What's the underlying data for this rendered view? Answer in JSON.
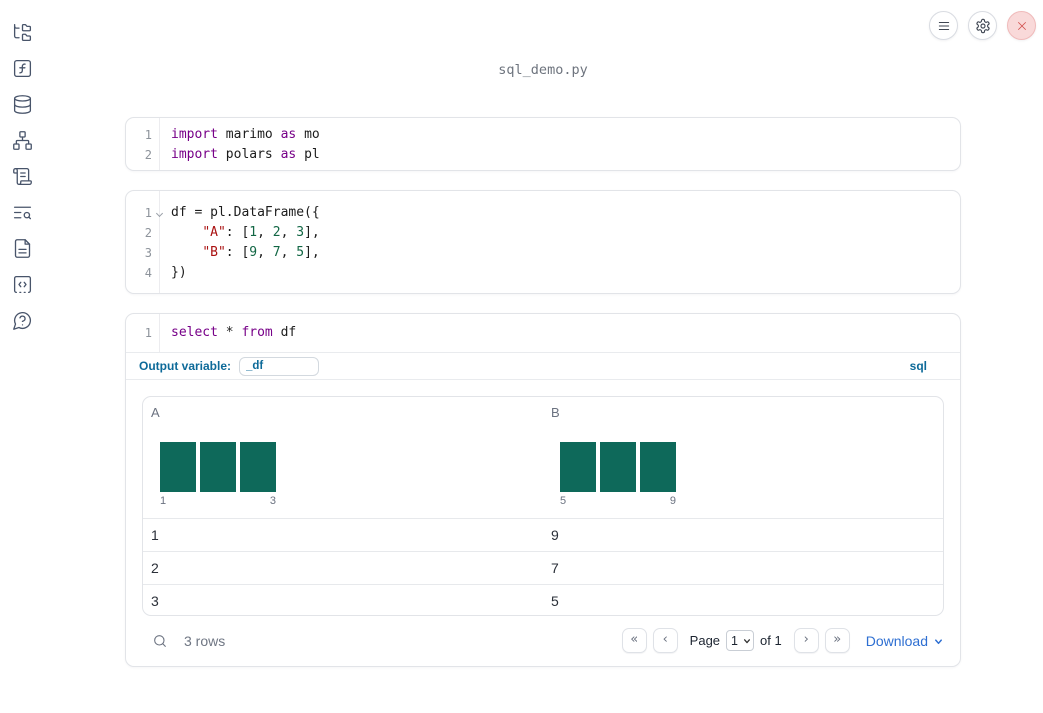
{
  "app": {
    "filename": "sql_demo.py"
  },
  "topbar": {
    "buttons": [
      {
        "name": "menu"
      },
      {
        "name": "settings"
      },
      {
        "name": "close"
      }
    ]
  },
  "sidebar": {
    "items": [
      "file-explorer",
      "variables",
      "data-sources",
      "dependency-graph",
      "logs",
      "search-outline",
      "documentation",
      "snippets",
      "help"
    ]
  },
  "colors": {
    "accent_blue": "#0d6a99",
    "link_blue": "#2e6fd2",
    "histogram_teal": "#0e695a",
    "keyword": "#770088",
    "string": "#aa1111",
    "number": "#116644"
  },
  "cells": [
    {
      "name": "imports-cell",
      "lines": [
        {
          "num": "1",
          "tokens": [
            [
              "kw",
              "import"
            ],
            [
              "pl",
              " marimo "
            ],
            [
              "kw",
              "as"
            ],
            [
              "pl",
              " mo"
            ]
          ]
        },
        {
          "num": "2",
          "tokens": [
            [
              "kw",
              "import"
            ],
            [
              "pl",
              " polars "
            ],
            [
              "kw",
              "as"
            ],
            [
              "pl",
              " pl"
            ]
          ]
        }
      ]
    },
    {
      "name": "dataframe-cell",
      "lines": [
        {
          "num": "1",
          "fold": true,
          "tokens": [
            [
              "pl",
              "df = pl.DataFrame({"
            ]
          ]
        },
        {
          "num": "2",
          "tokens": [
            [
              "pl",
              "    "
            ],
            [
              "str",
              "\"A\""
            ],
            [
              "pl",
              ": ["
            ],
            [
              "num",
              "1"
            ],
            [
              "pl",
              ", "
            ],
            [
              "num",
              "2"
            ],
            [
              "pl",
              ", "
            ],
            [
              "num",
              "3"
            ],
            [
              "pl",
              "],"
            ]
          ]
        },
        {
          "num": "3",
          "tokens": [
            [
              "pl",
              "    "
            ],
            [
              "str",
              "\"B\""
            ],
            [
              "pl",
              ": ["
            ],
            [
              "num",
              "9"
            ],
            [
              "pl",
              ", "
            ],
            [
              "num",
              "7"
            ],
            [
              "pl",
              ", "
            ],
            [
              "num",
              "5"
            ],
            [
              "pl",
              "],"
            ]
          ]
        },
        {
          "num": "4",
          "tokens": [
            [
              "pl",
              "})"
            ]
          ]
        }
      ]
    },
    {
      "name": "sql-cell",
      "lines": [
        {
          "num": "1",
          "tokens": [
            [
              "kw",
              "select"
            ],
            [
              "pl",
              " * "
            ],
            [
              "kw",
              "from"
            ],
            [
              "pl",
              " df"
            ]
          ]
        }
      ],
      "toolbar": {
        "output_variable_label": "Output variable:",
        "output_variable_value": "_df",
        "language_badge": "sql"
      }
    }
  ],
  "table": {
    "columns": [
      {
        "label": "A",
        "histogram": {
          "bar_heights": [
            1,
            1,
            1
          ],
          "min_label": "1",
          "max_label": "3",
          "bar_color": "#0e695a"
        }
      },
      {
        "label": "B",
        "histogram": {
          "bar_heights": [
            1,
            1,
            1
          ],
          "min_label": "5",
          "max_label": "9",
          "bar_color": "#0e695a"
        }
      }
    ],
    "rows": [
      [
        "1",
        "9"
      ],
      [
        "2",
        "7"
      ],
      [
        "3",
        "5"
      ]
    ],
    "footer": {
      "row_count": "3 rows",
      "pagination": {
        "page_label": "Page",
        "page_value": "1",
        "of_label": "of 1"
      },
      "download_label": "Download"
    }
  }
}
